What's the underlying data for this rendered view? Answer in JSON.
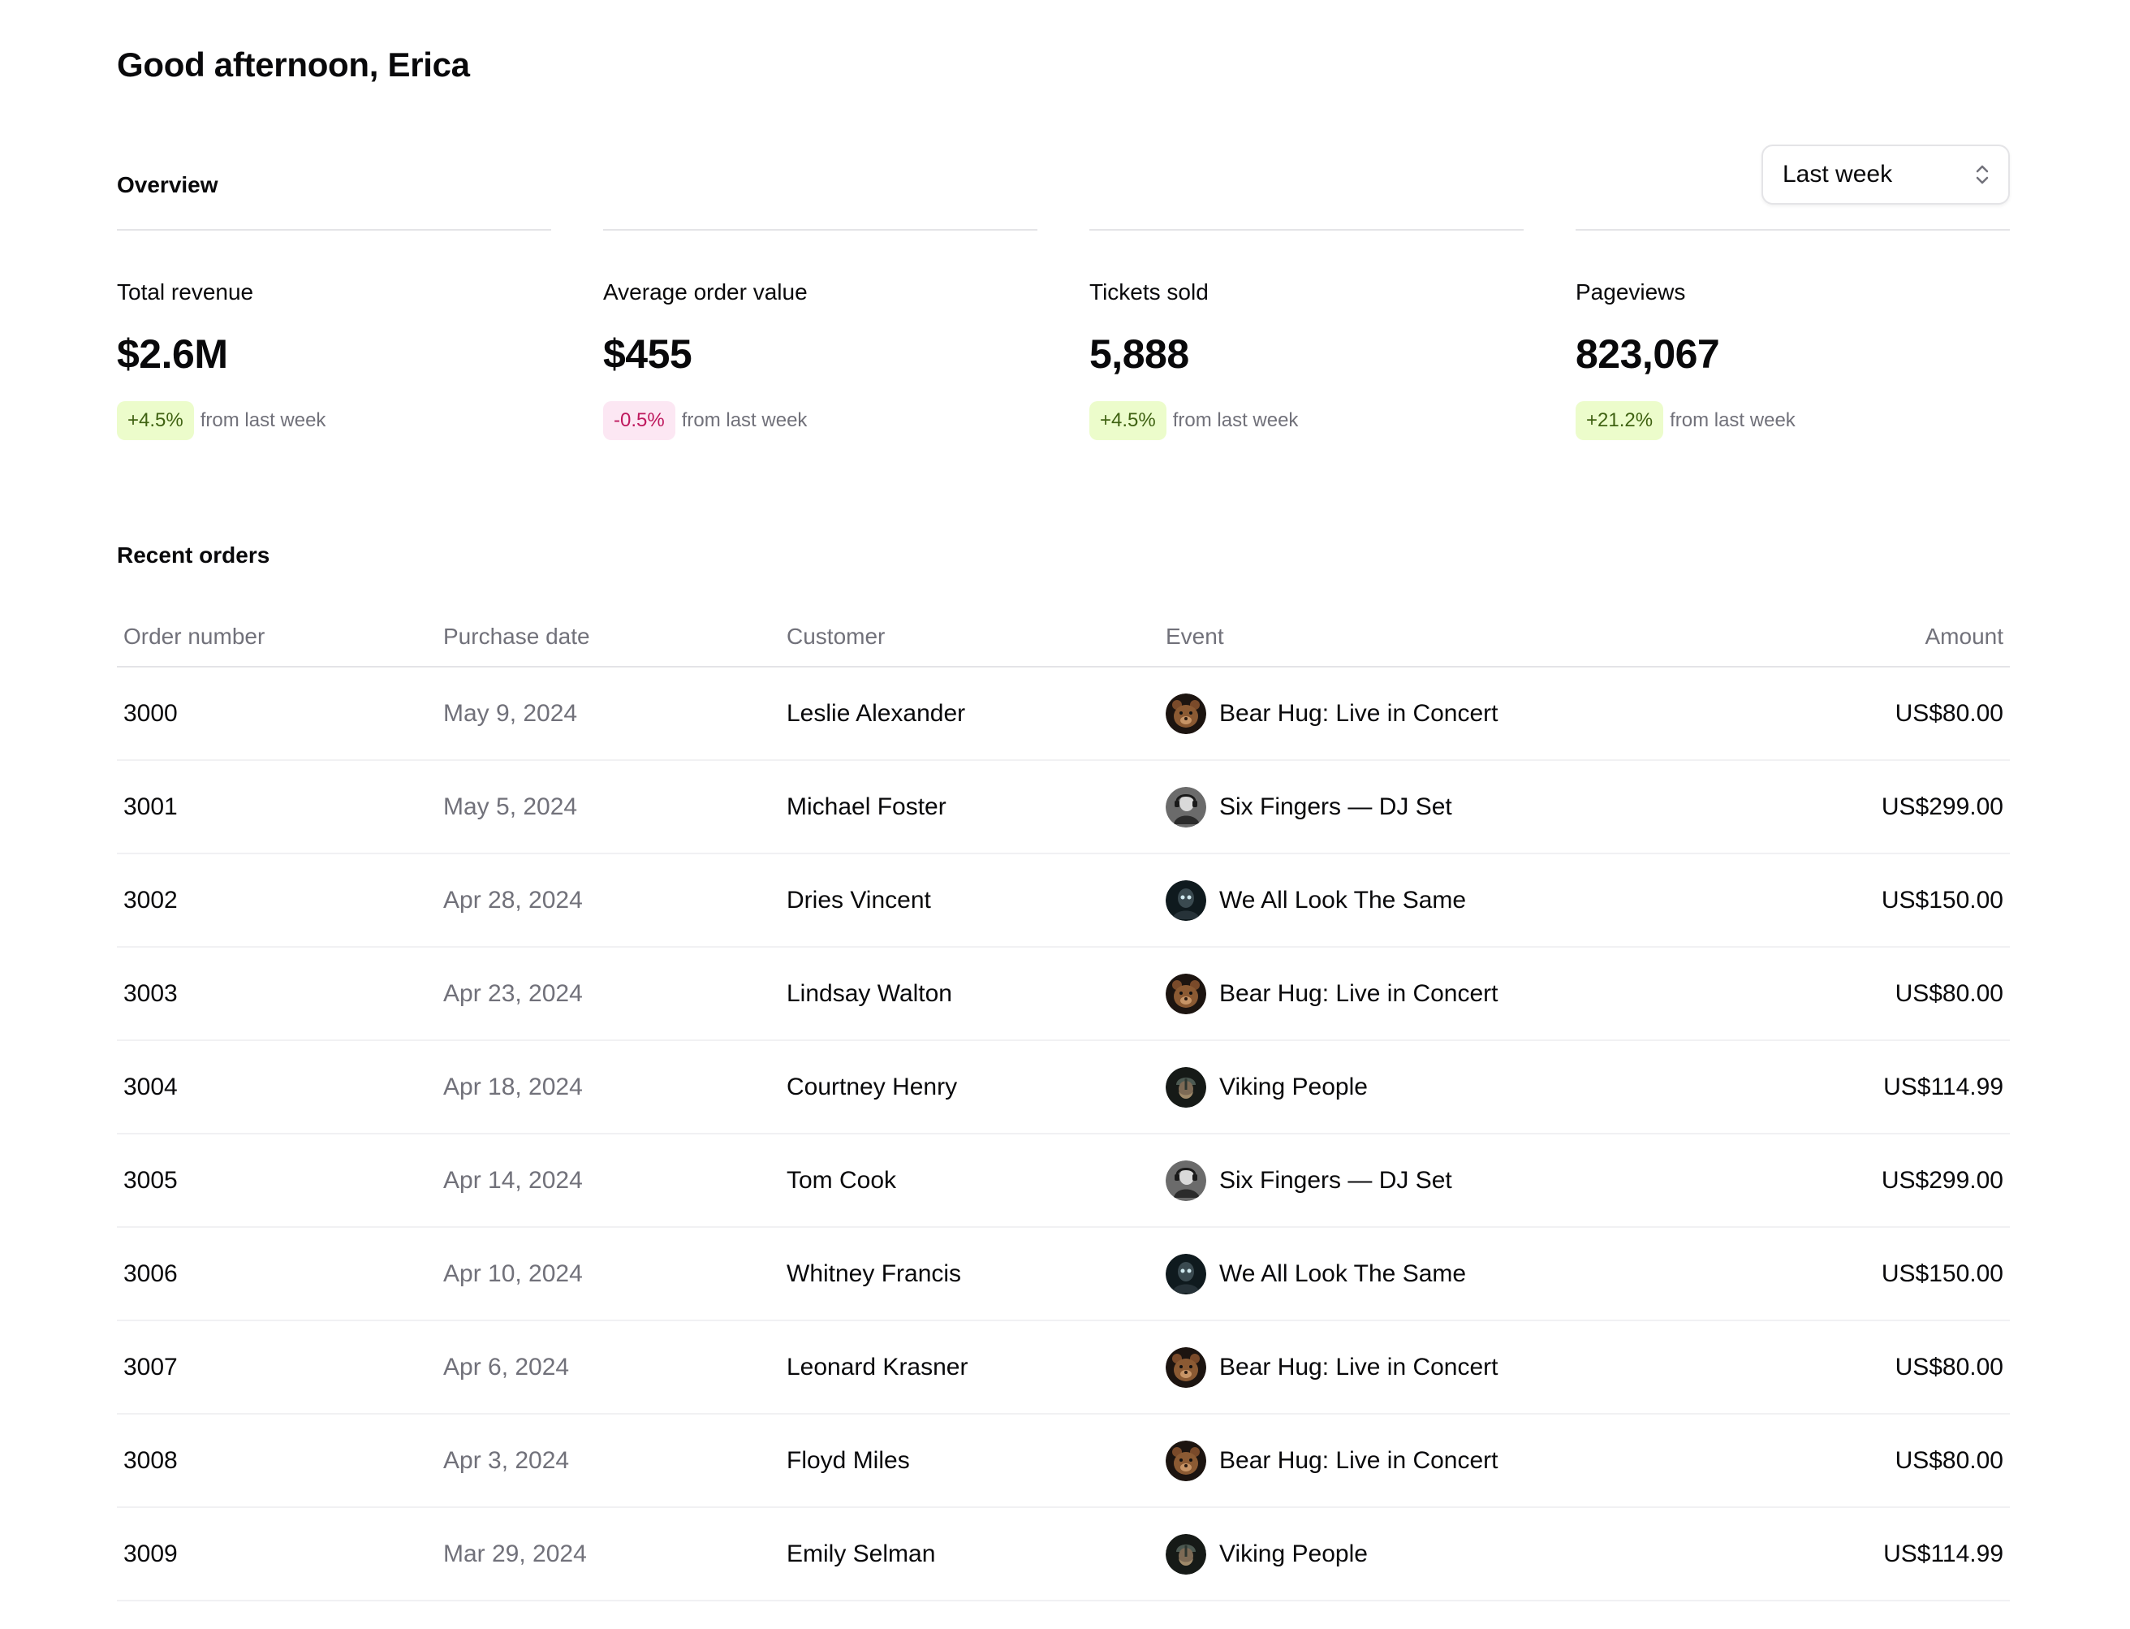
{
  "greeting": "Good afternoon, Erica",
  "overview": {
    "title": "Overview",
    "period": "Last week",
    "stats": [
      {
        "label": "Total revenue",
        "value": "$2.6M",
        "change": "+4.5%",
        "trend": "positive",
        "note": "from last week"
      },
      {
        "label": "Average order value",
        "value": "$455",
        "change": "-0.5%",
        "trend": "negative",
        "note": "from last week"
      },
      {
        "label": "Tickets sold",
        "value": "5,888",
        "change": "+4.5%",
        "trend": "positive",
        "note": "from last week"
      },
      {
        "label": "Pageviews",
        "value": "823,067",
        "change": "+21.2%",
        "trend": "positive",
        "note": "from last week"
      }
    ]
  },
  "orders": {
    "title": "Recent orders",
    "columns": {
      "order": "Order number",
      "date": "Purchase date",
      "customer": "Customer",
      "event": "Event",
      "amount": "Amount"
    },
    "rows": [
      {
        "order": "3000",
        "date": "May 9, 2024",
        "customer": "Leslie Alexander",
        "event": "Bear Hug: Live in Concert",
        "icon": "bear-icon",
        "amount": "US$80.00"
      },
      {
        "order": "3001",
        "date": "May 5, 2024",
        "customer": "Michael Foster",
        "event": "Six Fingers — DJ Set",
        "icon": "dj-icon",
        "amount": "US$299.00"
      },
      {
        "order": "3002",
        "date": "Apr 28, 2024",
        "customer": "Dries Vincent",
        "event": "We All Look The Same",
        "icon": "masked-figure-icon",
        "amount": "US$150.00"
      },
      {
        "order": "3003",
        "date": "Apr 23, 2024",
        "customer": "Lindsay Walton",
        "event": "Bear Hug: Live in Concert",
        "icon": "bear-icon",
        "amount": "US$80.00"
      },
      {
        "order": "3004",
        "date": "Apr 18, 2024",
        "customer": "Courtney Henry",
        "event": "Viking People",
        "icon": "viking-icon",
        "amount": "US$114.99"
      },
      {
        "order": "3005",
        "date": "Apr 14, 2024",
        "customer": "Tom Cook",
        "event": "Six Fingers — DJ Set",
        "icon": "dj-icon",
        "amount": "US$299.00"
      },
      {
        "order": "3006",
        "date": "Apr 10, 2024",
        "customer": "Whitney Francis",
        "event": "We All Look The Same",
        "icon": "masked-figure-icon",
        "amount": "US$150.00"
      },
      {
        "order": "3007",
        "date": "Apr 6, 2024",
        "customer": "Leonard Krasner",
        "event": "Bear Hug: Live in Concert",
        "icon": "bear-icon",
        "amount": "US$80.00"
      },
      {
        "order": "3008",
        "date": "Apr 3, 2024",
        "customer": "Floyd Miles",
        "event": "Bear Hug: Live in Concert",
        "icon": "bear-icon",
        "amount": "US$80.00"
      },
      {
        "order": "3009",
        "date": "Mar 29, 2024",
        "customer": "Emily Selman",
        "event": "Viking People",
        "icon": "viking-icon",
        "amount": "US$114.99"
      }
    ]
  }
}
